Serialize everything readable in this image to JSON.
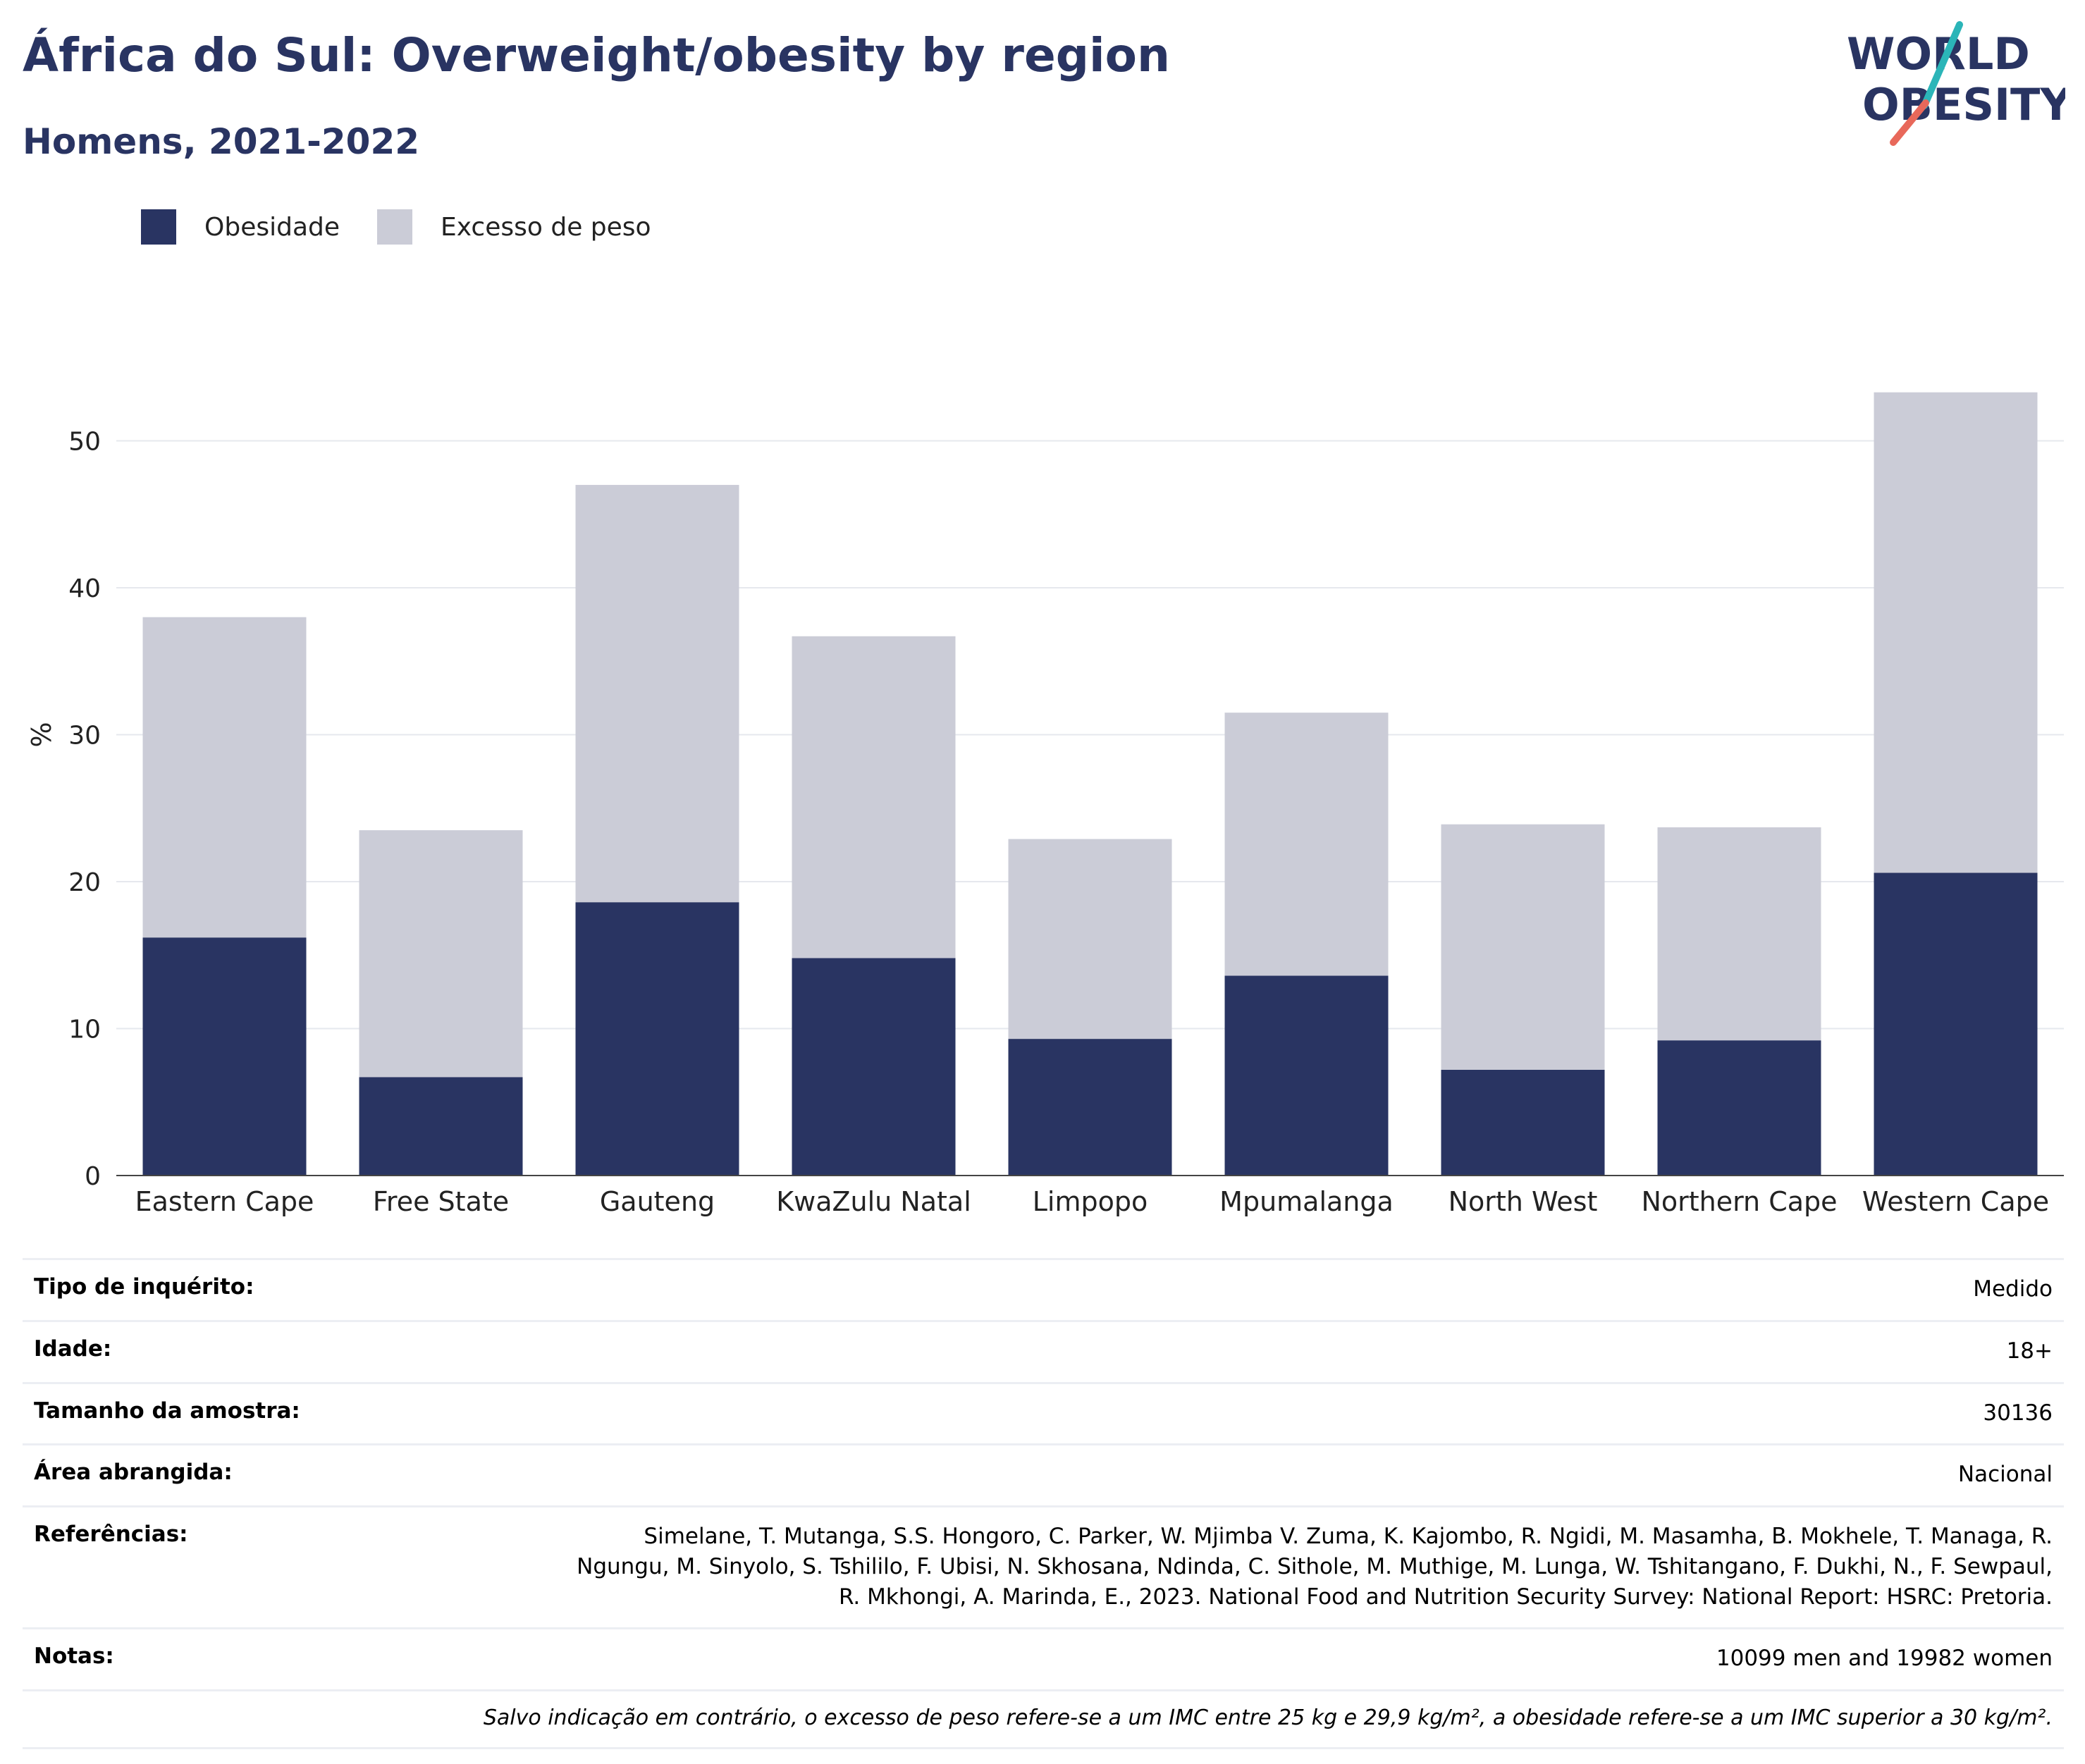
{
  "header": {
    "title": "África do Sul: Overweight/obesity by region",
    "subtitle": "Homens, 2021-2022"
  },
  "logo": {
    "line1": "WORLD",
    "line2": "OBESITY",
    "colors": {
      "text": "#293462",
      "slash_top": "#2bb5b8",
      "slash_bottom": "#e8685a"
    }
  },
  "legend": [
    {
      "label": "Obesidade",
      "color": "#293462"
    },
    {
      "label": "Excesso de peso",
      "color": "#cbccd7"
    }
  ],
  "chart_data": {
    "type": "bar",
    "stacked": true,
    "categories": [
      "Eastern Cape",
      "Free State",
      "Gauteng",
      "KwaZulu Natal",
      "Limpopo",
      "Mpumalanga",
      "North West",
      "Northern Cape",
      "Western Cape"
    ],
    "series": [
      {
        "name": "Obesidade",
        "color": "#293462",
        "values": [
          16.2,
          6.7,
          18.6,
          14.8,
          9.3,
          13.6,
          7.2,
          9.2,
          20.6
        ]
      },
      {
        "name": "Excesso de peso",
        "color": "#cbccd7",
        "values": [
          21.8,
          16.8,
          28.4,
          21.9,
          13.6,
          17.9,
          16.7,
          14.5,
          32.7
        ]
      }
    ],
    "ylabel": "%",
    "xlabel": "",
    "ylim": [
      0,
      55
    ],
    "yticks": [
      0,
      10,
      20,
      30,
      40,
      50
    ],
    "grid": true,
    "legend_position": "top-left"
  },
  "info": [
    {
      "key": "Tipo de inquérito:",
      "value": "Medido"
    },
    {
      "key": "Idade:",
      "value": "18+"
    },
    {
      "key": "Tamanho da amostra:",
      "value": "30136"
    },
    {
      "key": "Área abrangida:",
      "value": "Nacional"
    },
    {
      "key": "Referências:",
      "value": "Simelane, T. Mutanga, S.S. Hongoro, C. Parker, W. Mjimba V. Zuma, K. Kajombo, R. Ngidi, M. Masamha, B. Mokhele, T. Managa, R. Ngungu, M. Sinyolo, S. Tshililo, F. Ubisi, N. Skhosana, Ndinda, C. Sithole, M. Muthige, M. Lunga, W. Tshitangano, F. Dukhi, N., F. Sewpaul, R. Mkhongi, A. Marinda, E., 2023. National Food and Nutrition Security Survey: National Report: HSRC: Pretoria."
    },
    {
      "key": "Notas:",
      "value": "10099 men and 19982 women"
    }
  ],
  "footnote": "Salvo indicação em contrário, o excesso de peso refere-se a um IMC entre 25 kg e 29,9 kg/m², a obesidade refere-se a um IMC superior a 30 kg/m²."
}
